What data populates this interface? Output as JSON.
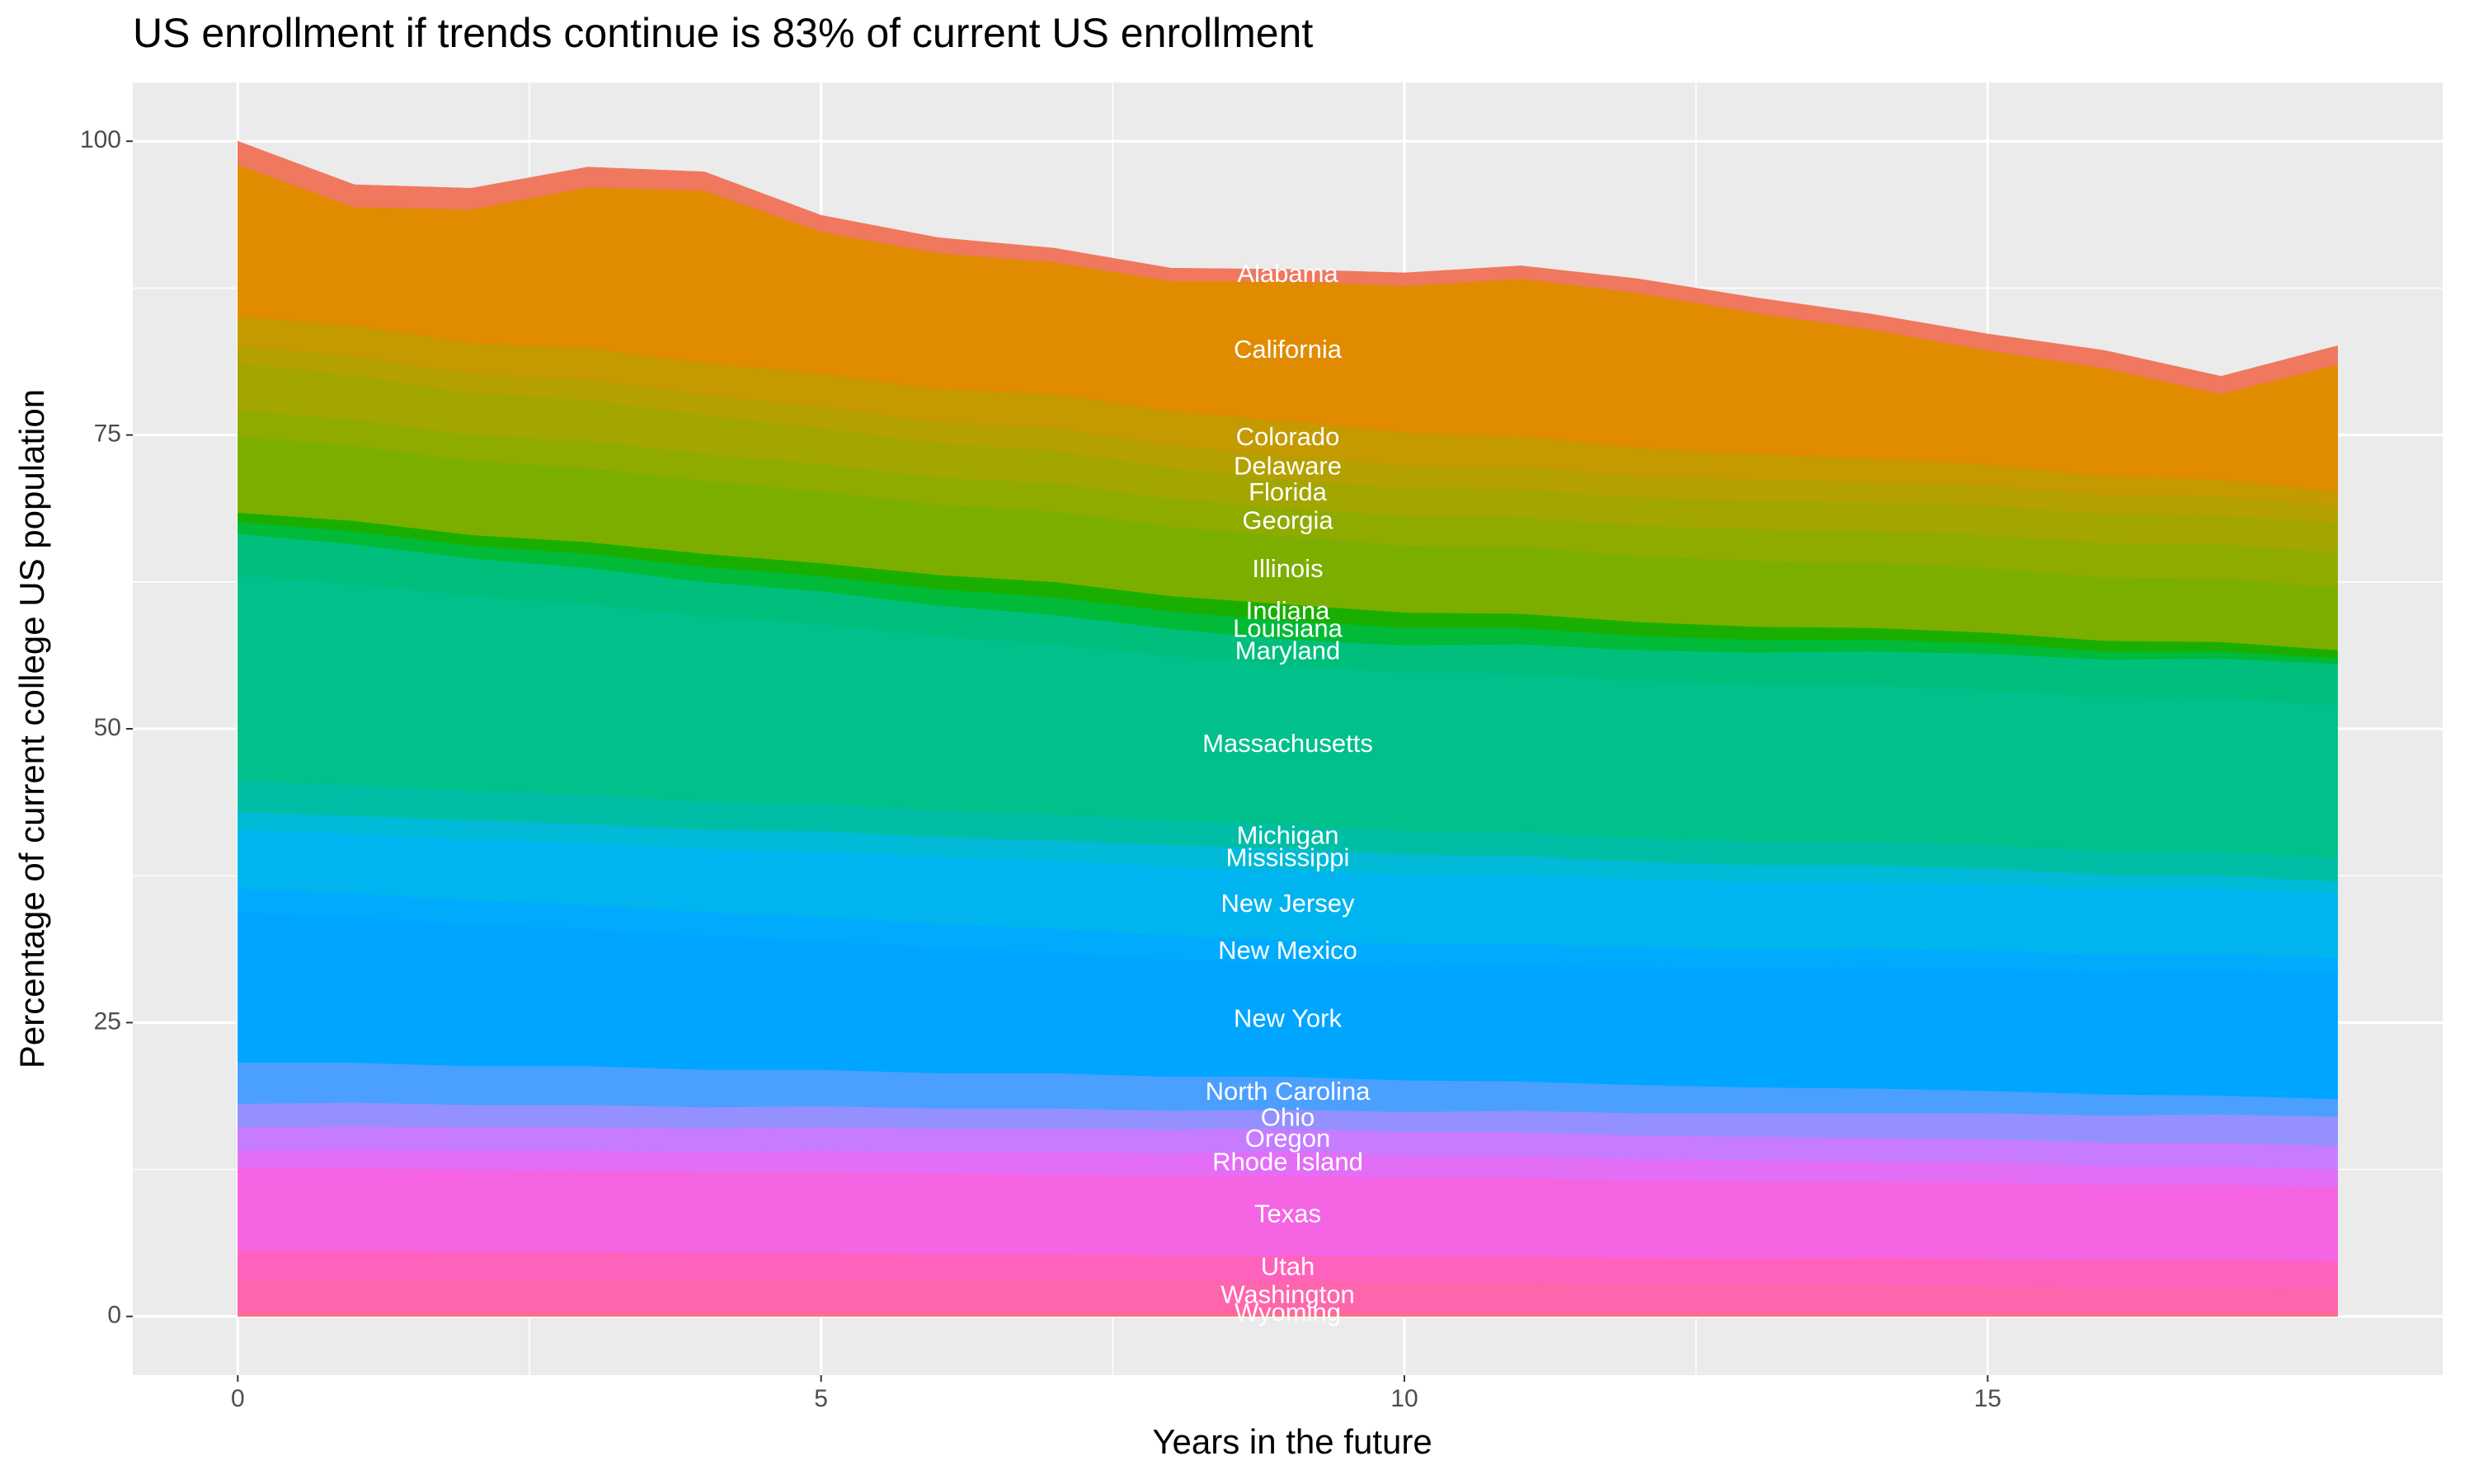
{
  "chart_data": {
    "type": "stacked_area",
    "title": "US enrollment if trends continue is 83% of current US enrollment",
    "x_label": "Years in the future",
    "y_label": "Percentage of current college US population",
    "x": [
      0,
      1,
      2,
      3,
      4,
      5,
      6,
      7,
      8,
      9,
      10,
      11,
      12,
      13,
      14,
      15,
      16,
      17,
      18
    ],
    "xlim": [
      -0.9,
      18.9
    ],
    "xticks": [
      0,
      5,
      10,
      15
    ],
    "ylim": [
      -5,
      105
    ],
    "yticks": [
      0,
      25,
      50,
      75,
      100
    ],
    "grid": true,
    "series": [
      {
        "name": "Wyoming",
        "color": "#ff6c91",
        "values": [
          0.4,
          0.4,
          0.4,
          0.4,
          0.4,
          0.4,
          0.4,
          0.4,
          0.4,
          0.4,
          0.4,
          0.4,
          0.4,
          0.4,
          0.4,
          0.4,
          0.4,
          0.4,
          0.4
        ]
      },
      {
        "name": "Washington",
        "color": "#ff65ac",
        "values": [
          2.6,
          2.6,
          2.6,
          2.6,
          2.6,
          2.6,
          2.6,
          2.6,
          2.6,
          2.6,
          2.5,
          2.5,
          2.4,
          2.3,
          2.3,
          2.2,
          2.1,
          2.1,
          2.0
        ]
      },
      {
        "name": "Utah",
        "color": "#ff62bc",
        "values": [
          2.6,
          2.6,
          2.5,
          2.5,
          2.4,
          2.4,
          2.3,
          2.3,
          2.2,
          2.2,
          2.2,
          2.2,
          2.2,
          2.2,
          2.3,
          2.3,
          2.3,
          2.3,
          2.3
        ]
      },
      {
        "name": "Texas",
        "color": "#f564e3",
        "values": [
          7.0,
          7.0,
          7.0,
          6.9,
          6.9,
          6.9,
          6.9,
          6.8,
          6.8,
          6.8,
          6.7,
          6.7,
          6.6,
          6.6,
          6.5,
          6.5,
          6.4,
          6.4,
          6.3
        ]
      },
      {
        "name": "Rhode Island",
        "color": "#e36ef6",
        "values": [
          1.5,
          1.6,
          1.6,
          1.7,
          1.7,
          1.8,
          1.8,
          1.9,
          1.9,
          2.0,
          1.9,
          1.9,
          1.8,
          1.8,
          1.7,
          1.7,
          1.6,
          1.6,
          1.5
        ]
      },
      {
        "name": "Oregon",
        "color": "#c77cff",
        "values": [
          2.0,
          2.0,
          2.0,
          2.0,
          2.0,
          2.0,
          2.0,
          2.0,
          2.0,
          2.0,
          2.0,
          2.0,
          2.0,
          2.0,
          2.0,
          2.0,
          2.0,
          2.0,
          2.0
        ]
      },
      {
        "name": "Ohio",
        "color": "#9590ff",
        "values": [
          2.0,
          2.0,
          1.9,
          1.9,
          1.8,
          1.8,
          1.7,
          1.7,
          1.6,
          1.6,
          1.7,
          1.8,
          1.9,
          2.0,
          2.1,
          2.2,
          2.3,
          2.4,
          2.5
        ]
      },
      {
        "name": "North Carolina",
        "color": "#4ba0ff",
        "values": [
          3.5,
          3.4,
          3.3,
          3.3,
          3.2,
          3.1,
          3.0,
          3.0,
          2.9,
          2.8,
          2.7,
          2.5,
          2.4,
          2.2,
          2.1,
          1.9,
          1.8,
          1.6,
          1.5
        ]
      },
      {
        "name": "New York",
        "color": "#00a5ff",
        "values": [
          12.8,
          12.4,
          12.1,
          11.7,
          11.4,
          11.0,
          10.7,
          10.3,
          10.0,
          9.6,
          9.7,
          9.9,
          10.0,
          10.1,
          10.3,
          10.4,
          10.5,
          10.7,
          10.8
        ]
      },
      {
        "name": "New Mexico",
        "color": "#00abfd",
        "values": [
          2.0,
          2.0,
          2.0,
          2.0,
          2.0,
          2.0,
          2.0,
          2.0,
          2.0,
          2.0,
          1.9,
          1.8,
          1.7,
          1.6,
          1.6,
          1.5,
          1.4,
          1.3,
          1.2
        ]
      },
      {
        "name": "New Jersey",
        "color": "#00b4ef",
        "values": [
          5.0,
          5.1,
          5.2,
          5.3,
          5.4,
          5.6,
          5.7,
          5.8,
          5.9,
          6.0,
          5.9,
          5.9,
          5.8,
          5.8,
          5.7,
          5.7,
          5.6,
          5.6,
          5.5
        ]
      },
      {
        "name": "Mississippi",
        "color": "#00bad8",
        "values": [
          1.5,
          1.5,
          1.6,
          1.6,
          1.6,
          1.7,
          1.7,
          1.7,
          1.8,
          1.8,
          1.7,
          1.6,
          1.5,
          1.4,
          1.4,
          1.3,
          1.2,
          1.1,
          1.0
        ]
      },
      {
        "name": "Michigan",
        "color": "#00bea6",
        "values": [
          2.7,
          2.6,
          2.5,
          2.5,
          2.4,
          2.3,
          2.2,
          2.2,
          2.1,
          2.0,
          2.0,
          2.0,
          2.0,
          2.0,
          2.0,
          2.0,
          2.0,
          2.0,
          2.0
        ]
      },
      {
        "name": "Massachusetts",
        "color": "#00c08b",
        "values": [
          17.5,
          17.1,
          16.6,
          16.2,
          15.8,
          15.3,
          14.9,
          14.5,
          14.0,
          13.6,
          13.5,
          13.5,
          13.4,
          13.3,
          13.3,
          13.2,
          13.1,
          13.1,
          13.0
        ]
      },
      {
        "name": "Maryland",
        "color": "#00bf7d",
        "values": [
          3.5,
          3.4,
          3.2,
          3.1,
          2.9,
          2.8,
          2.6,
          2.5,
          2.3,
          2.2,
          2.3,
          2.5,
          2.6,
          2.8,
          2.9,
          3.1,
          3.2,
          3.4,
          3.5
        ]
      },
      {
        "name": "Louisiana",
        "color": "#00ba38",
        "values": [
          1.0,
          1.1,
          1.1,
          1.2,
          1.3,
          1.3,
          1.4,
          1.5,
          1.5,
          1.6,
          1.5,
          1.4,
          1.2,
          1.1,
          1.0,
          0.9,
          0.7,
          0.6,
          0.5
        ]
      },
      {
        "name": "Indiana",
        "color": "#1aaf00",
        "values": [
          0.8,
          0.9,
          0.9,
          1.0,
          1.1,
          1.1,
          1.2,
          1.3,
          1.3,
          1.4,
          1.3,
          1.2,
          1.2,
          1.1,
          1.0,
          0.9,
          0.9,
          0.8,
          0.7
        ]
      },
      {
        "name": "Illinois",
        "color": "#7cae00",
        "values": [
          6.5,
          6.4,
          6.3,
          6.3,
          6.2,
          6.1,
          6.0,
          6.0,
          5.9,
          5.8,
          5.7,
          5.7,
          5.6,
          5.6,
          5.5,
          5.5,
          5.4,
          5.4,
          5.3
        ]
      },
      {
        "name": "Georgia",
        "color": "#8fab00",
        "values": [
          2.2,
          2.2,
          2.2,
          2.3,
          2.3,
          2.3,
          2.3,
          2.4,
          2.4,
          2.4,
          2.5,
          2.5,
          2.6,
          2.7,
          2.7,
          2.8,
          2.9,
          2.9,
          3.0
        ]
      },
      {
        "name": "Florida",
        "color": "#a3a500",
        "values": [
          4.0,
          3.8,
          3.6,
          3.5,
          3.3,
          3.1,
          2.9,
          2.8,
          2.6,
          2.4,
          2.4,
          2.4,
          2.4,
          2.4,
          2.5,
          2.5,
          2.5,
          2.5,
          2.5
        ]
      },
      {
        "name": "Delaware",
        "color": "#b4a000",
        "values": [
          1.5,
          1.6,
          1.6,
          1.7,
          1.7,
          1.8,
          1.8,
          1.9,
          1.9,
          2.0,
          1.9,
          1.9,
          1.8,
          1.8,
          1.7,
          1.7,
          1.6,
          1.6,
          1.5
        ]
      },
      {
        "name": "Colorado",
        "color": "#c49a00",
        "values": [
          2.5,
          2.6,
          2.6,
          2.7,
          2.7,
          2.8,
          2.8,
          2.9,
          2.9,
          3.0,
          2.8,
          2.6,
          2.4,
          2.2,
          2.0,
          1.8,
          1.6,
          1.4,
          1.2
        ]
      },
      {
        "name": "California",
        "color": "#e08b00",
        "values": [
          12.9,
          10.1,
          11.4,
          13.7,
          14.7,
          12.1,
          11.6,
          11.2,
          11.1,
          11.9,
          12.5,
          13.4,
          13.2,
          12.0,
          11.0,
          9.7,
          9.2,
          7.3,
          10.8
        ]
      },
      {
        "name": "Alabama",
        "color": "#f0785f",
        "values": [
          2.0,
          1.9,
          1.8,
          1.7,
          1.6,
          1.4,
          1.3,
          1.2,
          1.1,
          1.0,
          1.1,
          1.1,
          1.2,
          1.3,
          1.3,
          1.4,
          1.5,
          1.5,
          1.6
        ]
      }
    ]
  }
}
